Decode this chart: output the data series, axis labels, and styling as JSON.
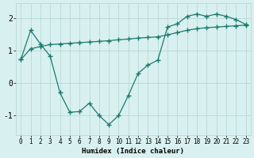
{
  "line1_x": [
    0,
    1,
    2,
    3,
    4,
    5,
    6,
    7,
    8,
    9,
    10,
    11,
    12,
    13,
    14,
    15,
    16,
    17,
    18,
    19,
    20,
    21,
    22,
    23
  ],
  "line1_y": [
    0.72,
    1.62,
    1.2,
    0.82,
    -0.3,
    -0.9,
    -0.88,
    -0.62,
    -1.0,
    -1.28,
    -1.0,
    -0.38,
    0.3,
    0.55,
    0.7,
    1.72,
    1.82,
    2.05,
    2.12,
    2.05,
    2.12,
    2.05,
    1.95,
    1.8
  ],
  "line2_x": [
    0,
    1,
    2,
    3,
    4,
    5,
    6,
    7,
    8,
    9,
    10,
    11,
    12,
    13,
    14,
    15,
    16,
    17,
    18,
    19,
    20,
    21,
    22,
    23
  ],
  "line2_y": [
    0.72,
    1.05,
    1.12,
    1.18,
    1.2,
    1.22,
    1.24,
    1.26,
    1.28,
    1.3,
    1.33,
    1.35,
    1.38,
    1.4,
    1.42,
    1.48,
    1.55,
    1.62,
    1.67,
    1.7,
    1.72,
    1.74,
    1.76,
    1.78
  ],
  "line_color": "#1a7a6e",
  "bg_color": "#d9f0f0",
  "grid_color": "#b8d8d8",
  "xlabel": "Humidex (Indice chaleur)",
  "xlim": [
    -0.5,
    23.5
  ],
  "ylim": [
    -1.6,
    2.45
  ],
  "yticks": [
    -1,
    0,
    1,
    2
  ],
  "xticks": [
    0,
    1,
    2,
    3,
    4,
    5,
    6,
    7,
    8,
    9,
    10,
    11,
    12,
    13,
    14,
    15,
    16,
    17,
    18,
    19,
    20,
    21,
    22,
    23
  ],
  "marker": "+",
  "markersize": 4,
  "linewidth": 0.9,
  "tick_fontsize": 5.5,
  "xlabel_fontsize": 6.5
}
